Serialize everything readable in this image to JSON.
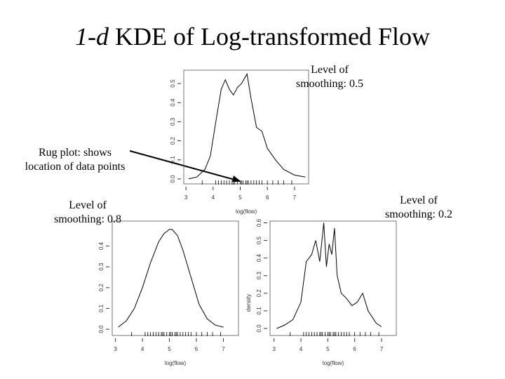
{
  "title_italic": "1-d",
  "title": "KDE of Log-transformed Flow",
  "annotations": [
    {
      "lines": [
        "Level of",
        "smoothing: 0.5"
      ]
    },
    {
      "lines": [
        "Rug plot: shows",
        "location of data points"
      ]
    },
    {
      "lines": [
        "Level of",
        "smoothing: 0.8"
      ]
    },
    {
      "lines": [
        "Level of",
        "smoothing: 0.2"
      ]
    }
  ],
  "chart_data": [
    {
      "type": "line",
      "xlabel": "log(flow)",
      "x": [
        3.1,
        3.4,
        3.7,
        3.9,
        4.1,
        4.3,
        4.45,
        4.6,
        4.75,
        4.9,
        5.05,
        5.25,
        5.4,
        5.6,
        5.8,
        6.0,
        6.3,
        6.6,
        7.0,
        7.4
      ],
      "values": [
        0.0,
        0.01,
        0.05,
        0.12,
        0.3,
        0.47,
        0.52,
        0.47,
        0.44,
        0.48,
        0.5,
        0.55,
        0.42,
        0.27,
        0.25,
        0.16,
        0.1,
        0.05,
        0.02,
        0.01
      ],
      "rug": [
        3.6,
        4.1,
        4.2,
        4.3,
        4.4,
        4.5,
        4.6,
        4.7,
        4.75,
        4.8,
        4.9,
        5.0,
        5.05,
        5.1,
        5.2,
        5.25,
        5.3,
        5.4,
        5.5,
        5.6,
        5.7,
        5.8,
        6.0,
        6.2,
        6.4,
        6.6,
        6.9
      ],
      "xlim": [
        2.92,
        7.52
      ],
      "ylim": [
        -0.026,
        0.57
      ],
      "xticks": [
        3,
        4,
        5,
        6,
        7
      ],
      "yticks": [
        {
          "value": 0,
          "label": "0.0"
        },
        0.1,
        0.2,
        0.3,
        0.4,
        0.5
      ]
    },
    {
      "type": "line",
      "xlabel": "log(flow)",
      "x": [
        3.1,
        3.4,
        3.7,
        4.0,
        4.3,
        4.6,
        4.8,
        5.0,
        5.1,
        5.3,
        5.5,
        5.8,
        6.1,
        6.4,
        6.7,
        7.0
      ],
      "values": [
        0.01,
        0.04,
        0.1,
        0.2,
        0.32,
        0.42,
        0.46,
        0.48,
        0.48,
        0.45,
        0.38,
        0.25,
        0.12,
        0.05,
        0.02,
        0.01
      ],
      "rug": [
        3.6,
        4.1,
        4.2,
        4.3,
        4.4,
        4.5,
        4.6,
        4.7,
        4.75,
        4.8,
        4.9,
        5.0,
        5.05,
        5.1,
        5.2,
        5.25,
        5.3,
        5.4,
        5.5,
        5.6,
        5.7,
        5.8,
        6.0,
        6.2,
        6.4,
        6.6,
        6.9
      ],
      "xlim": [
        2.88,
        7.56
      ],
      "ylim": [
        -0.03,
        0.52
      ],
      "xticks": [
        3,
        4,
        5,
        6,
        7
      ],
      "yticks": [
        {
          "value": 0,
          "label": "0.0"
        },
        0.1,
        0.2,
        0.3,
        0.4
      ]
    },
    {
      "type": "line",
      "xlabel": "log(flow)",
      "ylabel": "density",
      "x": [
        3.1,
        3.4,
        3.7,
        4.0,
        4.2,
        4.4,
        4.55,
        4.7,
        4.85,
        4.95,
        5.05,
        5.15,
        5.25,
        5.35,
        5.5,
        5.7,
        5.9,
        6.1,
        6.3,
        6.5,
        6.8,
        7.0
      ],
      "values": [
        0.0,
        0.02,
        0.05,
        0.15,
        0.38,
        0.42,
        0.5,
        0.38,
        0.6,
        0.35,
        0.48,
        0.42,
        0.57,
        0.3,
        0.2,
        0.17,
        0.13,
        0.15,
        0.2,
        0.1,
        0.03,
        0.01
      ],
      "rug": [
        3.6,
        4.1,
        4.2,
        4.3,
        4.4,
        4.5,
        4.6,
        4.7,
        4.75,
        4.8,
        4.9,
        5.0,
        5.05,
        5.1,
        5.2,
        5.25,
        5.3,
        5.4,
        5.5,
        5.6,
        5.7,
        5.8,
        6.0,
        6.2,
        6.4,
        6.6,
        6.9
      ],
      "xlim": [
        2.85,
        7.55
      ],
      "ylim": [
        -0.04,
        0.61
      ],
      "xticks": [
        3,
        4,
        5,
        6,
        7
      ],
      "yticks": [
        {
          "value": 0,
          "label": "0.0"
        },
        0.1,
        0.2,
        0.3,
        0.4,
        0.5,
        0.6
      ]
    }
  ]
}
